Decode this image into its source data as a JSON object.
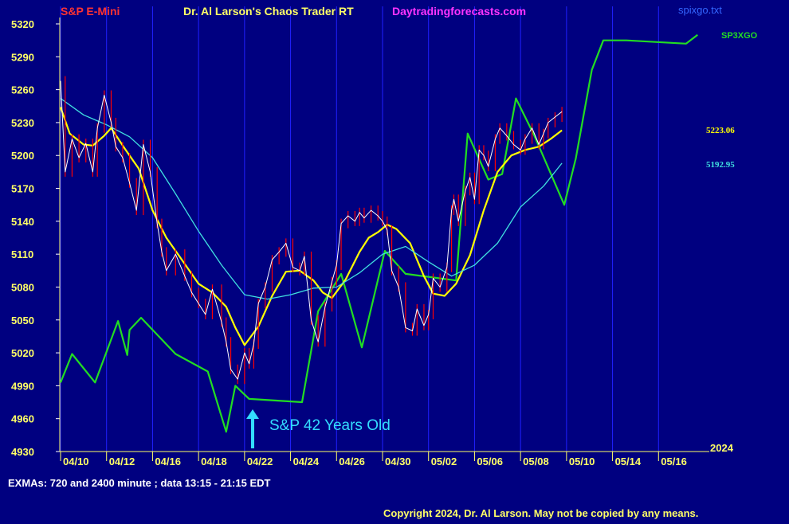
{
  "header": {
    "symbol": "S&P E-Mini",
    "app_title": "Dr. Al Larson's Chaos Trader RT",
    "website": "Daytradingforecasts.com",
    "file_name": "spixgo.txt",
    "forecast_label": "SP3XGO"
  },
  "footer": {
    "exma_note": "EXMAs: 720 and 2400 minute ; data 13:15 - 21:15 EDT",
    "copyright": "Copyright 2024, Dr. Al Larson. May not be copied by any means.",
    "year": "2024"
  },
  "annotation": {
    "text": "S&P 42 Years Old"
  },
  "value_labels": {
    "yellow_last": "5223.06",
    "cyan_last": "5192.95"
  },
  "colors": {
    "background": "#000080",
    "price": "#ffffff",
    "price_wick": "#ff0000",
    "ema_720": "#ffff00",
    "ema_2400": "#40e0e0",
    "forecast": "#22dd22",
    "grid": "#2020ff",
    "annotation": "#33ddff",
    "symbol": "#ff3333",
    "website": "#ff33ff",
    "axis_text": "#ffff66"
  },
  "chart_data": {
    "type": "line",
    "y_ticks": [
      5320,
      5290,
      5260,
      5230,
      5200,
      5170,
      5140,
      5110,
      5080,
      5050,
      5020,
      4990,
      4960,
      4930
    ],
    "ylim": [
      4930,
      5320
    ],
    "x_tick_labels": [
      "04/10",
      "04/12",
      "04/16",
      "04/18",
      "04/22",
      "04/24",
      "04/26",
      "04/30",
      "05/02",
      "05/06",
      "05/08",
      "05/10",
      "05/14",
      "05/16"
    ],
    "session_index_range": [
      0,
      14
    ],
    "grid": true,
    "series": [
      {
        "name": "SP3XGO",
        "x": [
          0,
          0.25,
          0.75,
          1.25,
          1.45,
          1.5,
          1.75,
          2.5,
          3.2,
          3.6,
          3.8,
          4.1,
          5.25,
          5.6,
          6.1,
          6.55,
          7.05,
          7.5,
          8.6,
          8.85,
          9.3,
          9.6,
          9.9,
          10.3,
          10.95,
          11.2,
          11.55,
          11.8,
          12.3,
          13.6,
          13.85
        ],
        "values": [
          4993,
          5019,
          4993,
          5049,
          5018,
          5041,
          5052,
          5019,
          5003,
          4948,
          4990,
          4978,
          4975,
          5058,
          5092,
          5025,
          5113,
          5092,
          5086,
          5220,
          5178,
          5183,
          5252,
          5218,
          5155,
          5197,
          5278,
          5305,
          5305,
          5302,
          5310
        ]
      },
      {
        "name": "EMA 720",
        "x": [
          0,
          0.2,
          0.5,
          0.7,
          0.95,
          1.1,
          1.4,
          1.7,
          2.0,
          2.3,
          2.6,
          3.0,
          3.3,
          3.6,
          3.8,
          4.0,
          4.3,
          4.6,
          4.9,
          5.2,
          5.5,
          5.7,
          5.9,
          6.2,
          6.5,
          6.7,
          6.9,
          7.1,
          7.3,
          7.6,
          7.9,
          8.1,
          8.35,
          8.6,
          8.9,
          9.2,
          9.5,
          9.8,
          10.1,
          10.4,
          10.65,
          10.9
        ],
        "values": [
          5244,
          5220,
          5210,
          5209,
          5218,
          5225,
          5206,
          5188,
          5150,
          5125,
          5107,
          5083,
          5075,
          5062,
          5043,
          5027,
          5044,
          5072,
          5094,
          5095,
          5086,
          5075,
          5070,
          5087,
          5112,
          5125,
          5130,
          5137,
          5133,
          5120,
          5090,
          5074,
          5072,
          5083,
          5109,
          5150,
          5185,
          5200,
          5205,
          5208,
          5215,
          5223
        ]
      },
      {
        "name": "EMA 2400",
        "x": [
          0,
          0.5,
          1,
          1.5,
          2,
          2.5,
          3,
          3.5,
          4,
          4.5,
          5,
          5.5,
          6,
          6.5,
          7,
          7.5,
          8,
          8.5,
          9,
          9.5,
          10,
          10.5,
          10.9
        ],
        "values": [
          5252,
          5237,
          5228,
          5217,
          5198,
          5165,
          5131,
          5100,
          5073,
          5069,
          5073,
          5079,
          5080,
          5093,
          5110,
          5117,
          5103,
          5090,
          5100,
          5120,
          5153,
          5172,
          5193
        ]
      },
      {
        "name": "S&P E-Mini",
        "x": [
          0,
          0.1,
          0.25,
          0.4,
          0.55,
          0.7,
          0.8,
          0.95,
          1.1,
          1.2,
          1.35,
          1.5,
          1.65,
          1.8,
          1.95,
          2.1,
          2.2,
          2.3,
          2.5,
          2.7,
          2.85,
          3.0,
          3.15,
          3.3,
          3.5,
          3.6,
          3.7,
          3.85,
          4.0,
          4.1,
          4.2,
          4.3,
          4.45,
          4.6,
          4.75,
          4.9,
          5.05,
          5.2,
          5.3,
          5.45,
          5.6,
          5.75,
          5.9,
          6.0,
          6.1,
          6.25,
          6.4,
          6.5,
          6.6,
          6.75,
          6.9,
          7.0,
          7.1,
          7.2,
          7.35,
          7.5,
          7.65,
          7.75,
          7.9,
          8.0,
          8.1,
          8.25,
          8.4,
          8.5,
          8.55,
          8.65,
          8.8,
          8.9,
          9.0,
          9.1,
          9.2,
          9.3,
          9.45,
          9.55,
          9.7,
          9.85,
          10.0,
          10.1,
          10.25,
          10.4,
          10.5,
          10.6,
          10.75,
          10.9
        ],
        "values": [
          5268,
          5185,
          5215,
          5198,
          5211,
          5185,
          5225,
          5255,
          5230,
          5208,
          5198,
          5175,
          5150,
          5210,
          5185,
          5138,
          5112,
          5095,
          5110,
          5090,
          5075,
          5065,
          5055,
          5078,
          5048,
          5030,
          5005,
          4996,
          5020,
          5010,
          5028,
          5065,
          5080,
          5105,
          5112,
          5120,
          5098,
          5095,
          5108,
          5050,
          5030,
          5062,
          5085,
          5100,
          5138,
          5145,
          5140,
          5148,
          5143,
          5150,
          5145,
          5140,
          5132,
          5095,
          5080,
          5043,
          5040,
          5060,
          5045,
          5055,
          5088,
          5080,
          5098,
          5150,
          5160,
          5140,
          5168,
          5180,
          5160,
          5205,
          5200,
          5190,
          5215,
          5225,
          5218,
          5210,
          5205,
          5215,
          5225,
          5210,
          5220,
          5230,
          5235,
          5240
        ]
      }
    ]
  }
}
